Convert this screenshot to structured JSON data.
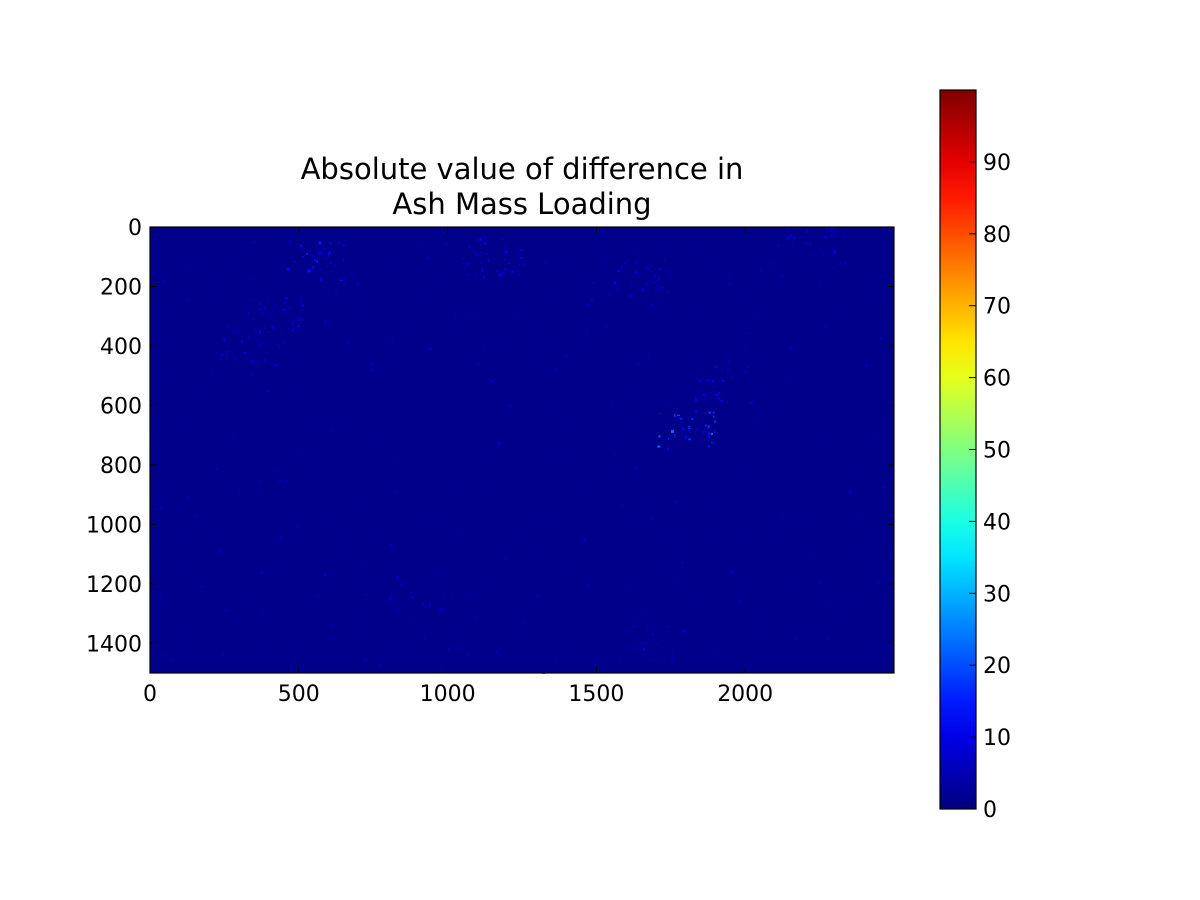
{
  "chart_data": {
    "type": "heatmap",
    "title_lines": [
      "Absolute value of difference in",
      "Ash Mass Loading"
    ],
    "xlabel": "",
    "ylabel": "",
    "xlim": [
      0,
      2500
    ],
    "ylim": [
      1500,
      0
    ],
    "x_ticks": [
      0,
      500,
      1000,
      1500,
      2000
    ],
    "y_ticks": [
      0,
      200,
      400,
      600,
      800,
      1000,
      1200,
      1400
    ],
    "colormap": "jet",
    "background_value_approx": 1,
    "colorbar": {
      "range": [
        0,
        100
      ],
      "ticks": [
        0,
        10,
        20,
        30,
        40,
        50,
        60,
        70,
        80,
        90
      ],
      "position": "right"
    },
    "features": [
      {
        "x": 1800,
        "y": 680,
        "value_approx": 18
      },
      {
        "x": 1920,
        "y": 530,
        "value_approx": 10
      },
      {
        "x": 1150,
        "y": 100,
        "value_approx": 10
      },
      {
        "x": 560,
        "y": 110,
        "value_approx": 12
      },
      {
        "x": 430,
        "y": 290,
        "value_approx": 10
      },
      {
        "x": 330,
        "y": 400,
        "value_approx": 8
      },
      {
        "x": 2200,
        "y": 30,
        "value_approx": 8
      },
      {
        "x": 1650,
        "y": 180,
        "value_approx": 8
      },
      {
        "x": 900,
        "y": 1230,
        "value_approx": 6
      },
      {
        "x": 1700,
        "y": 1390,
        "value_approx": 6
      }
    ]
  }
}
